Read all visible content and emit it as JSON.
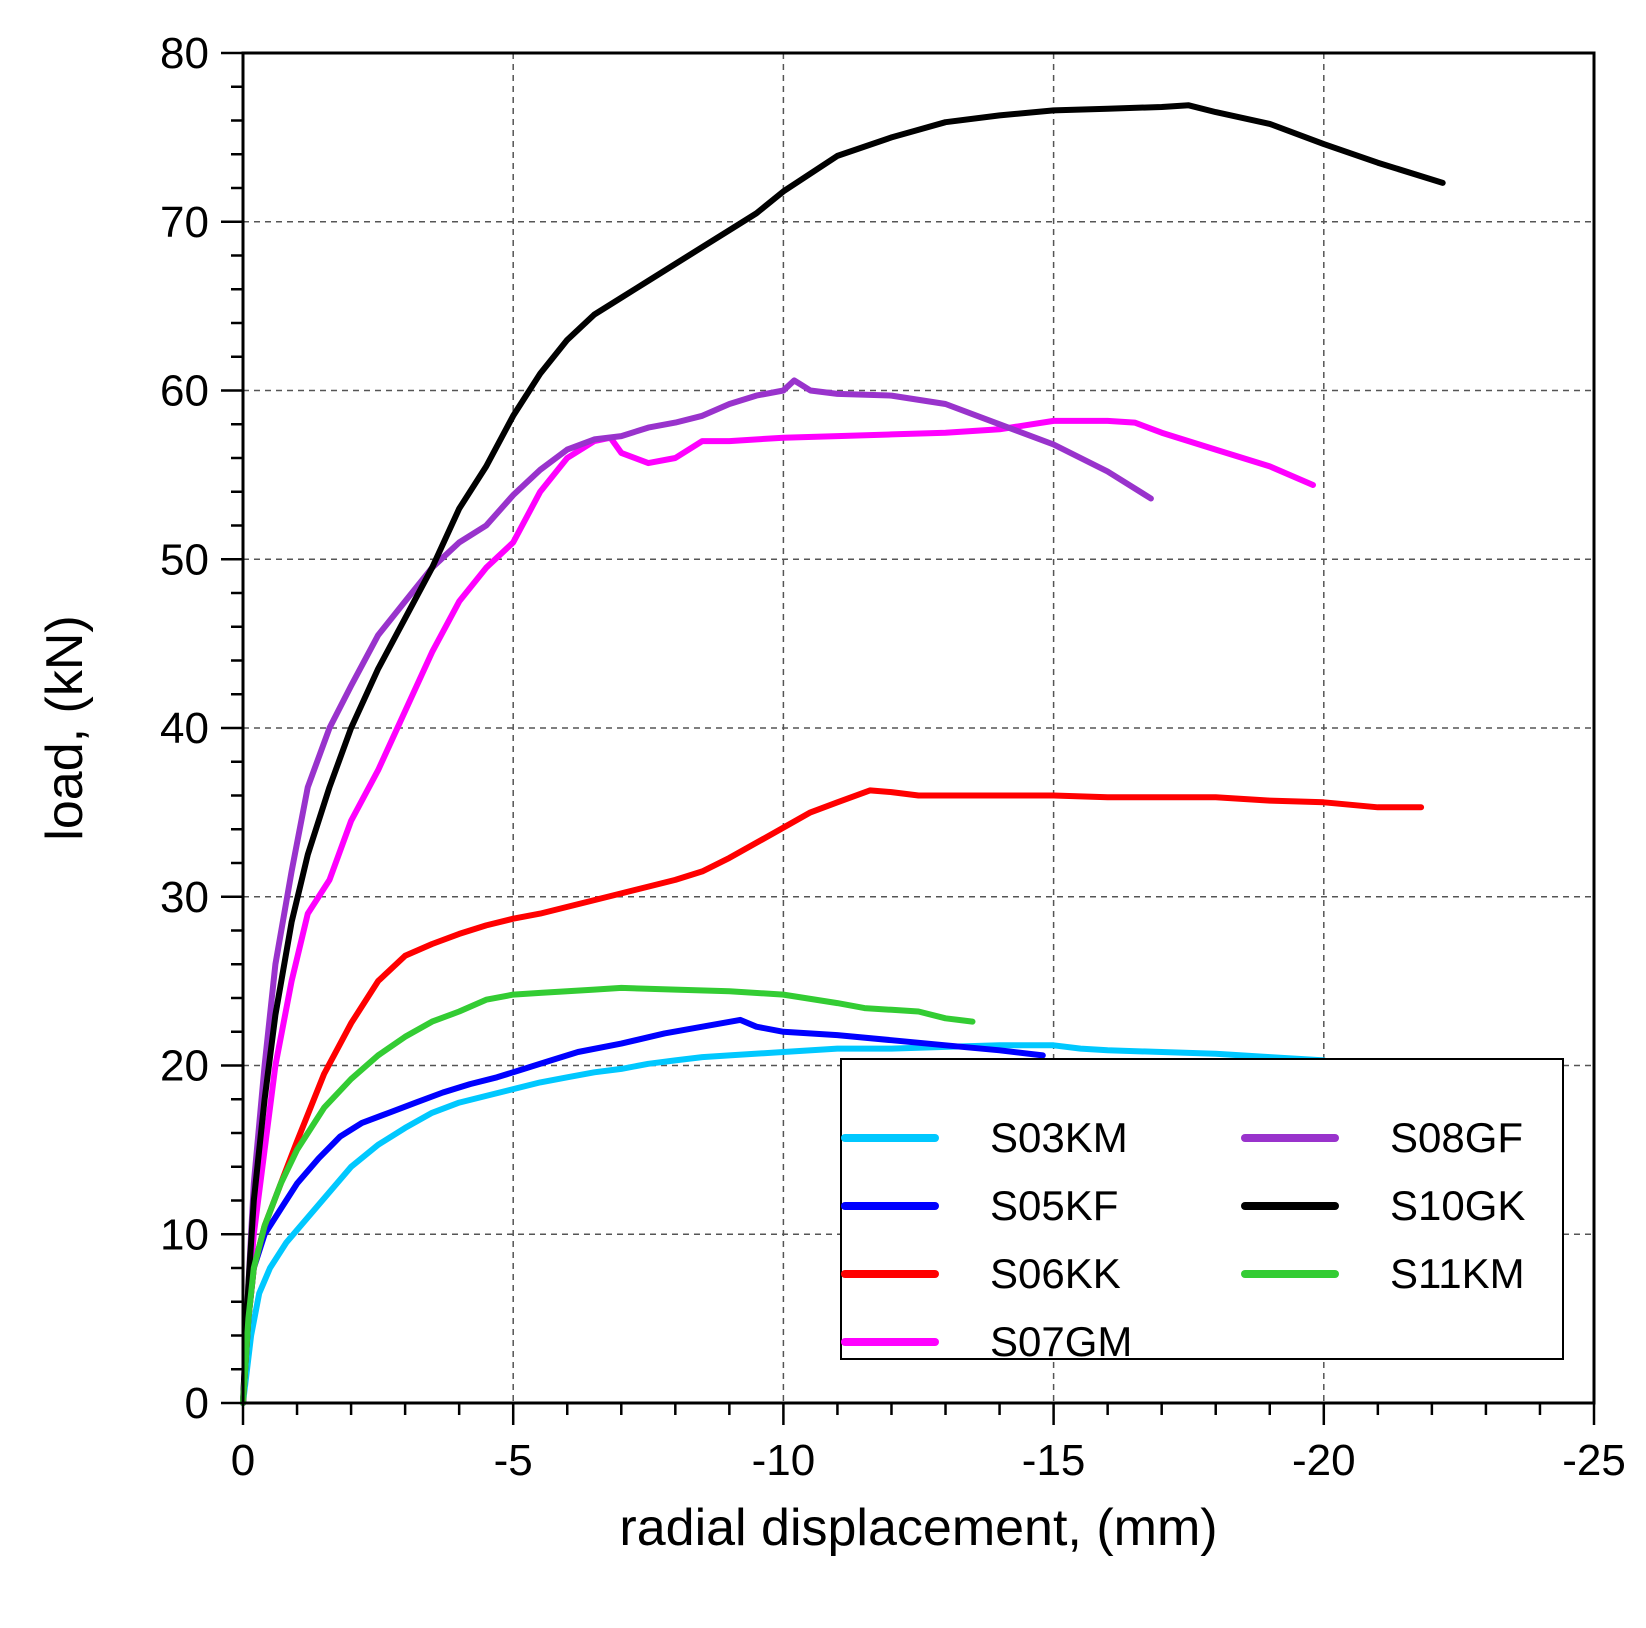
{
  "chart_data": {
    "type": "line",
    "title": "",
    "xlabel": "radial displacement, (mm)",
    "ylabel": "load, (kN)",
    "xlim": [
      0,
      -25
    ],
    "ylim": [
      0,
      80
    ],
    "xticks": [
      0,
      -5,
      -10,
      -15,
      -20,
      -25
    ],
    "yticks": [
      0,
      10,
      20,
      30,
      40,
      50,
      60,
      70,
      80
    ],
    "x_tick_labels": [
      "0",
      "-5",
      "-10",
      "-15",
      "-20",
      "-25"
    ],
    "y_tick_labels": [
      "0",
      "10",
      "20",
      "30",
      "40",
      "50",
      "60",
      "70",
      "80"
    ],
    "grid": true,
    "legend_position": "bottom-right",
    "series": [
      {
        "name": "S03KM",
        "color": "#00c8ff",
        "x": [
          0,
          -0.15,
          -0.3,
          -0.5,
          -0.8,
          -1.2,
          -1.6,
          -2.0,
          -2.5,
          -3.0,
          -3.5,
          -4.0,
          -4.5,
          -5.0,
          -5.5,
          -6.0,
          -6.5,
          -7.0,
          -7.5,
          -8.0,
          -8.5,
          -9.0,
          -10.0,
          -11.0,
          -12.0,
          -13.0,
          -14.0,
          -15.0,
          -15.5,
          -16.0,
          -17.0,
          -18.0,
          -19.0,
          -20.0
        ],
        "y": [
          0,
          4,
          6.5,
          8,
          9.5,
          11,
          12.5,
          14,
          15.3,
          16.3,
          17.2,
          17.8,
          18.2,
          18.6,
          19.0,
          19.3,
          19.6,
          19.8,
          20.1,
          20.3,
          20.5,
          20.6,
          20.8,
          21.0,
          21.0,
          21.1,
          21.2,
          21.2,
          21.0,
          20.9,
          20.8,
          20.7,
          20.5,
          20.3
        ]
      },
      {
        "name": "S05KF",
        "color": "#0000ff",
        "x": [
          0,
          -0.1,
          -0.2,
          -0.4,
          -0.7,
          -1.0,
          -1.4,
          -1.8,
          -2.2,
          -2.7,
          -3.2,
          -3.7,
          -4.2,
          -4.7,
          -5.2,
          -5.7,
          -6.2,
          -7.0,
          -7.8,
          -8.5,
          -9.2,
          -9.5,
          -10.0,
          -11.0,
          -12.0,
          -13.0,
          -14.0,
          -14.8
        ],
        "y": [
          0,
          5,
          8,
          10,
          11.5,
          13,
          14.5,
          15.8,
          16.6,
          17.2,
          17.8,
          18.4,
          18.9,
          19.3,
          19.8,
          20.3,
          20.8,
          21.3,
          21.9,
          22.3,
          22.7,
          22.3,
          22.0,
          21.8,
          21.5,
          21.2,
          20.9,
          20.6
        ]
      },
      {
        "name": "S06KK",
        "color": "#ff0000",
        "x": [
          0,
          -0.1,
          -0.2,
          -0.4,
          -0.7,
          -1.0,
          -1.5,
          -2.0,
          -2.5,
          -3.0,
          -3.5,
          -4.0,
          -4.5,
          -5.0,
          -5.5,
          -6.0,
          -6.5,
          -7.0,
          -7.5,
          -8.0,
          -8.5,
          -9.0,
          -9.5,
          -10.0,
          -10.5,
          -11.0,
          -11.6,
          -12.0,
          -12.5,
          -13.0,
          -14.0,
          -15.0,
          -16.0,
          -17.0,
          -18.0,
          -19.0,
          -20.0,
          -21.0,
          -21.8
        ],
        "y": [
          0,
          5,
          8,
          10.5,
          13,
          15.5,
          19.5,
          22.5,
          25,
          26.5,
          27.2,
          27.8,
          28.3,
          28.7,
          29.0,
          29.4,
          29.8,
          30.2,
          30.6,
          31.0,
          31.5,
          32.3,
          33.2,
          34.1,
          35.0,
          35.6,
          36.3,
          36.2,
          36.0,
          36.0,
          36.0,
          36.0,
          35.9,
          35.9,
          35.9,
          35.7,
          35.6,
          35.3,
          35.3
        ]
      },
      {
        "name": "S07GM",
        "color": "#ff00ff",
        "x": [
          0,
          -0.1,
          -0.2,
          -0.4,
          -0.6,
          -0.9,
          -1.2,
          -1.6,
          -2.0,
          -2.5,
          -3.0,
          -3.5,
          -4.0,
          -4.5,
          -5.0,
          -5.5,
          -6.0,
          -6.5,
          -6.8,
          -7.0,
          -7.5,
          -8.0,
          -8.5,
          -9.0,
          -10.0,
          -11.0,
          -12.0,
          -13.0,
          -14.0,
          -15.0,
          -16.0,
          -16.5,
          -17.0,
          -18.0,
          -19.0,
          -19.8
        ],
        "y": [
          0,
          6,
          10,
          15,
          20,
          25,
          29,
          31,
          34.5,
          37.5,
          41,
          44.5,
          47.5,
          49.5,
          51,
          54,
          56,
          57,
          57.2,
          56.3,
          55.7,
          56.0,
          57.0,
          57.0,
          57.2,
          57.3,
          57.4,
          57.5,
          57.7,
          58.2,
          58.2,
          58.1,
          57.5,
          56.5,
          55.5,
          54.4
        ]
      },
      {
        "name": "S08GF",
        "color": "#9933cc",
        "x": [
          0,
          -0.1,
          -0.2,
          -0.4,
          -0.6,
          -0.9,
          -1.2,
          -1.6,
          -2.0,
          -2.5,
          -3.0,
          -3.5,
          -4.0,
          -4.5,
          -5.0,
          -5.5,
          -6.0,
          -6.5,
          -7.0,
          -7.5,
          -8.0,
          -8.5,
          -9.0,
          -9.5,
          -10.0,
          -10.2,
          -10.5,
          -11.0,
          -12.0,
          -13.0,
          -14.0,
          -15.0,
          -16.0,
          -16.8
        ],
        "y": [
          0,
          7,
          13,
          20,
          26,
          31.5,
          36.5,
          40,
          42.5,
          45.5,
          47.5,
          49.5,
          51.0,
          52.0,
          53.8,
          55.3,
          56.5,
          57.1,
          57.3,
          57.8,
          58.1,
          58.5,
          59.2,
          59.7,
          60.0,
          60.6,
          60.0,
          59.8,
          59.7,
          59.2,
          58.0,
          56.8,
          55.2,
          53.6
        ]
      },
      {
        "name": "S10GK",
        "color": "#000000",
        "x": [
          0,
          -0.1,
          -0.2,
          -0.4,
          -0.6,
          -0.9,
          -1.2,
          -1.6,
          -2.0,
          -2.5,
          -3.0,
          -3.5,
          -4.0,
          -4.5,
          -5.0,
          -5.5,
          -6.0,
          -6.5,
          -7.0,
          -7.5,
          -8.0,
          -8.5,
          -9.0,
          -9.5,
          -10.0,
          -11.0,
          -12.0,
          -13.0,
          -14.0,
          -15.0,
          -16.0,
          -17.0,
          -17.5,
          -18.0,
          -19.0,
          -20.0,
          -21.0,
          -22.2
        ],
        "y": [
          0,
          7,
          12,
          18,
          23,
          28.5,
          32.5,
          36.5,
          40,
          43.5,
          46.5,
          49.5,
          53,
          55.5,
          58.5,
          61,
          63.0,
          64.5,
          65.5,
          66.5,
          67.5,
          68.5,
          69.5,
          70.5,
          71.8,
          73.9,
          75.0,
          75.9,
          76.3,
          76.6,
          76.7,
          76.8,
          76.9,
          76.5,
          75.8,
          74.6,
          73.5,
          72.3
        ]
      },
      {
        "name": "S11KM",
        "color": "#33cc33",
        "x": [
          0,
          -0.1,
          -0.2,
          -0.4,
          -0.7,
          -1.0,
          -1.5,
          -2.0,
          -2.5,
          -3.0,
          -3.5,
          -4.0,
          -4.5,
          -5.0,
          -5.5,
          -6.0,
          -6.5,
          -7.0,
          -8.0,
          -9.0,
          -10.0,
          -11.0,
          -11.5,
          -12.0,
          -12.5,
          -13.0,
          -13.5
        ],
        "y": [
          0,
          5,
          8,
          10.5,
          13,
          15,
          17.5,
          19.2,
          20.6,
          21.7,
          22.6,
          23.2,
          23.9,
          24.2,
          24.3,
          24.4,
          24.5,
          24.6,
          24.5,
          24.4,
          24.2,
          23.7,
          23.4,
          23.3,
          23.2,
          22.8,
          22.6
        ]
      }
    ]
  }
}
